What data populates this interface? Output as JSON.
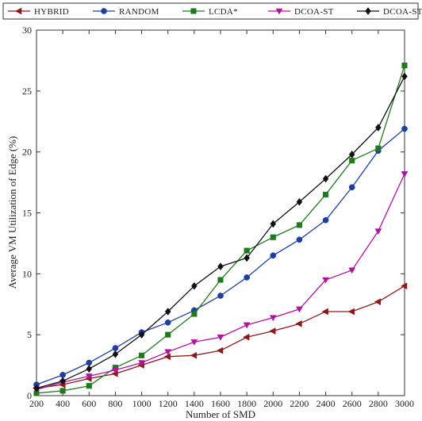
{
  "chart_data": {
    "type": "line",
    "title": "",
    "xlabel": "Number of SMD",
    "ylabel": "Average VM Utilization of Edge (%)",
    "xlim": [
      200,
      3000
    ],
    "ylim": [
      0,
      30
    ],
    "x": [
      200,
      400,
      600,
      800,
      1000,
      1200,
      1400,
      1600,
      1800,
      2000,
      2200,
      2400,
      2600,
      2800,
      3000
    ],
    "x_ticks": [
      "200",
      "400",
      "600",
      "800",
      "1000",
      "1200",
      "1400",
      "1600",
      "1800",
      "2000",
      "2200",
      "2400",
      "2600",
      "2800",
      "3000"
    ],
    "y_ticks": [
      "0",
      "5",
      "10",
      "15",
      "20",
      "25",
      "30"
    ],
    "grid": false,
    "legend_position": "top",
    "series": [
      {
        "name": "HYBRID",
        "color": "#8b1a1a",
        "marker": "triangle-left",
        "values": [
          0.6,
          0.9,
          1.4,
          1.8,
          2.5,
          3.2,
          3.3,
          3.7,
          4.8,
          5.3,
          5.9,
          6.9,
          6.9,
          7.7,
          9.0
        ]
      },
      {
        "name": "RANDOM",
        "color": "#1f3f9f",
        "marker": "circle",
        "values": [
          0.9,
          1.7,
          2.7,
          3.9,
          5.2,
          6.0,
          7.0,
          8.2,
          9.7,
          11.5,
          12.8,
          14.4,
          17.1,
          20.1,
          21.9
        ]
      },
      {
        "name": "LCDA*",
        "color": "#1f7a1f",
        "marker": "square",
        "values": [
          0.2,
          0.4,
          0.8,
          2.3,
          3.3,
          5.0,
          6.7,
          9.5,
          11.9,
          13.0,
          14.0,
          16.5,
          19.3,
          20.3,
          27.1
        ]
      },
      {
        "name": "DCOA-ST",
        "color": "#b0149f",
        "marker": "triangle-down",
        "values": [
          0.5,
          1.1,
          1.6,
          2.1,
          2.7,
          3.6,
          4.4,
          4.8,
          5.8,
          6.4,
          7.1,
          9.5,
          10.3,
          13.5,
          18.2
        ]
      },
      {
        "name": "DCOA-STQoE",
        "color": "#111111",
        "marker": "diamond",
        "values": [
          0.6,
          1.2,
          2.2,
          3.4,
          5.0,
          6.9,
          9.0,
          10.6,
          11.3,
          14.1,
          15.9,
          17.8,
          19.8,
          22.0,
          26.2
        ]
      }
    ]
  }
}
